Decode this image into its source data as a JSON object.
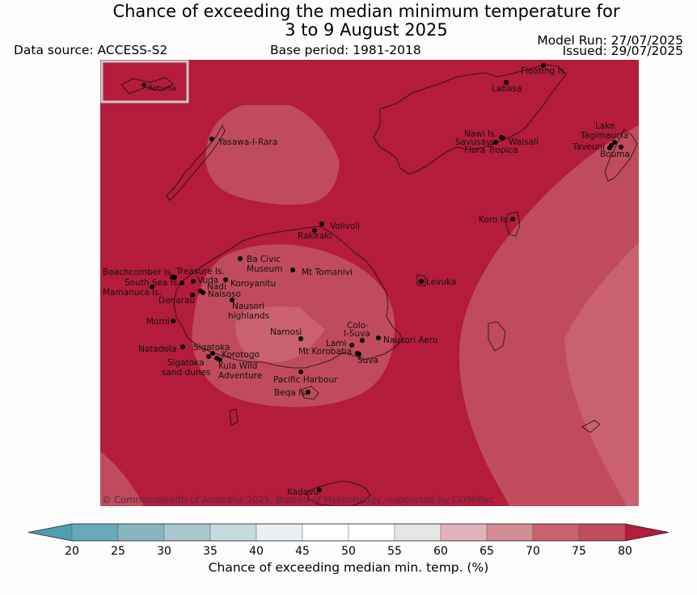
{
  "title_line1": "Chance of exceeding the median minimum temperature for",
  "title_line2": "3 to 9 August 2025",
  "data_source": "Data source: ACCESS-S2",
  "base_period": "Base period: 1981-2018",
  "model_run": "Model Run: 27/07/2025",
  "issued": "Issued: 29/07/2025",
  "copyright": "© Commonwealth of Australia 2025, Bureau of Meteorology, supported by COSPPac",
  "inset_label": "Rotuma",
  "colors": {
    "band_80_plus": "#b31c3a",
    "band_75_80": "#c04b5c",
    "band_70_75": "#c9616f",
    "map_background": "#b31c3a"
  },
  "places": [
    {
      "name": "Floating Is."
    },
    {
      "name": "Labasa"
    },
    {
      "name": "Yasawa-I-Rara"
    },
    {
      "name": "Nawi Is."
    },
    {
      "name": "Savusavu"
    },
    {
      "name": "Waisali"
    },
    {
      "name": "Flora Tropica"
    },
    {
      "name": "Lake"
    },
    {
      "name": "Tagimaucia"
    },
    {
      "name": "Taveuni"
    },
    {
      "name": "Bouma"
    },
    {
      "name": "Koro Is."
    },
    {
      "name": "Volivoli"
    },
    {
      "name": "Rakiraki"
    },
    {
      "name": "Ba Civic"
    },
    {
      "name": "Museum"
    },
    {
      "name": "Mt Tomanivi"
    },
    {
      "name": "Levuka"
    },
    {
      "name": "Beachcomber Is."
    },
    {
      "name": "Treasure Is."
    },
    {
      "name": "South Sea Is."
    },
    {
      "name": "Vuda"
    },
    {
      "name": "Koroyanitu"
    },
    {
      "name": "Nadi"
    },
    {
      "name": "Mamanuca Is."
    },
    {
      "name": "Naisoso"
    },
    {
      "name": "Denarau"
    },
    {
      "name": "Nausori"
    },
    {
      "name": "highlands"
    },
    {
      "name": "Momi"
    },
    {
      "name": "Namosi"
    },
    {
      "name": "Colo-"
    },
    {
      "name": "I-Suva"
    },
    {
      "name": "Lami"
    },
    {
      "name": "Nausori Aero"
    },
    {
      "name": "Natadola"
    },
    {
      "name": "Sigatoka"
    },
    {
      "name": "Korotogo"
    },
    {
      "name": "Mt Korobaba"
    },
    {
      "name": "Suva"
    },
    {
      "name": "Sigatoka"
    },
    {
      "name": "sand dunes"
    },
    {
      "name": "Kula Wild"
    },
    {
      "name": "Adventure"
    },
    {
      "name": "Pacific Harbour"
    },
    {
      "name": "Beqa Is."
    },
    {
      "name": "Kadavu"
    }
  ],
  "colorbar": {
    "title": "Chance of exceeding median min. temp. (%)",
    "ticks": [
      "20",
      "25",
      "30",
      "35",
      "40",
      "45",
      "50",
      "55",
      "60",
      "65",
      "70",
      "75",
      "80"
    ],
    "colors": [
      "#4d9fb1",
      "#67aab9",
      "#87b6c1",
      "#a9c8ce",
      "#c9dadf",
      "#eaf1f4",
      "#ffffff",
      "#ffffff",
      "#e6e6e6",
      "#e1b4bb",
      "#d48d97",
      "#c9616f",
      "#c04b5c",
      "#b31c3a"
    ]
  }
}
